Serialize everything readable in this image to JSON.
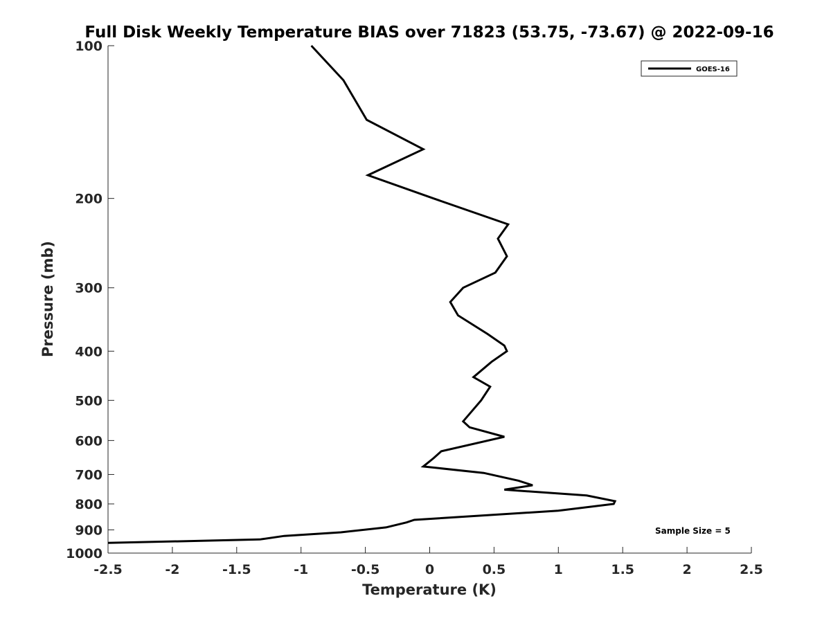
{
  "chart_data": {
    "type": "line",
    "title": "Full Disk Weekly Temperature BIAS over 71823 (53.75, -73.67) @ 2022-09-16",
    "xlabel": "Temperature (K)",
    "ylabel": "Pressure (mb)",
    "xlim": [
      -2.5,
      2.5
    ],
    "ylim": [
      100,
      1000
    ],
    "y_scale": "log",
    "y_reversed": true,
    "x_ticks": [
      -2.5,
      -2,
      -1.5,
      -1,
      -0.5,
      0,
      0.5,
      1,
      1.5,
      2,
      2.5
    ],
    "x_tick_labels": [
      "-2.5",
      "-2",
      "-1.5",
      "-1",
      "-0.5",
      "0",
      "0.5",
      "1",
      "1.5",
      "2",
      "2.5"
    ],
    "y_ticks": [
      100,
      200,
      300,
      400,
      500,
      600,
      700,
      800,
      900,
      1000
    ],
    "y_tick_labels": [
      "100",
      "200",
      "300",
      "400",
      "500",
      "600",
      "700",
      "800",
      "900",
      "1000"
    ],
    "grid": false,
    "legend_position": "top-right",
    "series": [
      {
        "name": "GOES-16",
        "color": "#000000",
        "points": [
          {
            "x": -0.92,
            "y": 100
          },
          {
            "x": -0.67,
            "y": 117
          },
          {
            "x": -0.49,
            "y": 140
          },
          {
            "x": -0.05,
            "y": 160
          },
          {
            "x": -0.48,
            "y": 180
          },
          {
            "x": 0.03,
            "y": 200
          },
          {
            "x": 0.61,
            "y": 225
          },
          {
            "x": 0.53,
            "y": 240
          },
          {
            "x": 0.6,
            "y": 260
          },
          {
            "x": 0.51,
            "y": 280
          },
          {
            "x": 0.26,
            "y": 300
          },
          {
            "x": 0.16,
            "y": 320
          },
          {
            "x": 0.22,
            "y": 340
          },
          {
            "x": 0.45,
            "y": 370
          },
          {
            "x": 0.58,
            "y": 390
          },
          {
            "x": 0.6,
            "y": 400
          },
          {
            "x": 0.48,
            "y": 420
          },
          {
            "x": 0.34,
            "y": 450
          },
          {
            "x": 0.47,
            "y": 470
          },
          {
            "x": 0.4,
            "y": 500
          },
          {
            "x": 0.26,
            "y": 550
          },
          {
            "x": 0.31,
            "y": 565
          },
          {
            "x": 0.58,
            "y": 590
          },
          {
            "x": 0.09,
            "y": 630
          },
          {
            "x": 0.03,
            "y": 650
          },
          {
            "x": -0.05,
            "y": 675
          },
          {
            "x": 0.42,
            "y": 695
          },
          {
            "x": 0.69,
            "y": 720
          },
          {
            "x": 0.8,
            "y": 735
          },
          {
            "x": 0.58,
            "y": 750
          },
          {
            "x": 1.22,
            "y": 770
          },
          {
            "x": 1.44,
            "y": 790
          },
          {
            "x": 1.43,
            "y": 800
          },
          {
            "x": 1.0,
            "y": 825
          },
          {
            "x": -0.12,
            "y": 860
          },
          {
            "x": -0.18,
            "y": 870
          },
          {
            "x": -0.34,
            "y": 890
          },
          {
            "x": -0.69,
            "y": 910
          },
          {
            "x": -1.13,
            "y": 925
          },
          {
            "x": -1.32,
            "y": 940
          },
          {
            "x": -2.5,
            "y": 955
          }
        ]
      }
    ],
    "annotations": [
      {
        "text": "Sample Size = 5",
        "position": "bottom-right"
      }
    ]
  }
}
